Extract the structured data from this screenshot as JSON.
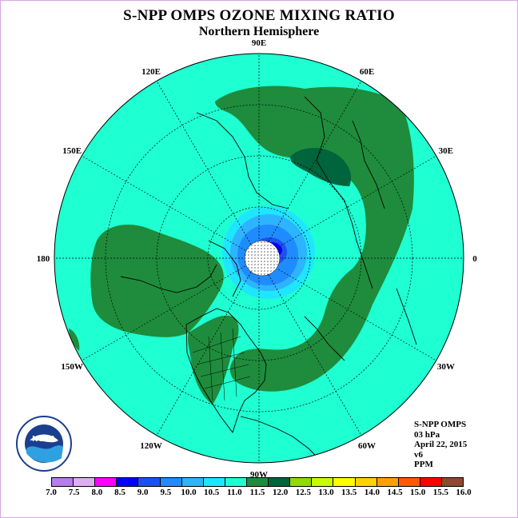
{
  "title": "S-NPP OMPS OZONE MIXING RATIO",
  "subtitle": "Northern Hemisphere",
  "longitude_labels": [
    {
      "text": "90E",
      "lon": 90
    },
    {
      "text": "60E",
      "lon": 60
    },
    {
      "text": "30E",
      "lon": 30
    },
    {
      "text": "0",
      "lon": 0
    },
    {
      "text": "30W",
      "lon": -30
    },
    {
      "text": "60W",
      "lon": -60
    },
    {
      "text": "90W",
      "lon": -90
    },
    {
      "text": "120W",
      "lon": -120
    },
    {
      "text": "150W",
      "lon": -150
    },
    {
      "text": "180",
      "lon": 180
    },
    {
      "text": "150E",
      "lon": 150
    },
    {
      "text": "120E",
      "lon": 120
    }
  ],
  "info": {
    "instrument": "S-NPP OMPS",
    "level": "03 hPa",
    "date": "April 22, 2015",
    "version": "v6",
    "units": "PPM"
  },
  "logo": {
    "text": "NOAA",
    "icon": "noaa-logo-icon"
  },
  "colorbar": {
    "labels": [
      "7.0",
      "7.5",
      "8.0",
      "8.5",
      "9.0",
      "9.5",
      "10.0",
      "10.5",
      "11.0",
      "11.5",
      "12.0",
      "12.5",
      "13.0",
      "13.5",
      "14.0",
      "14.5",
      "15.0",
      "15.5",
      "16.0"
    ],
    "colors": [
      "#b77de8",
      "#dcb0f0",
      "#ff00ff",
      "#0000ff",
      "#1e50f0",
      "#1e8cff",
      "#2db4ff",
      "#1ee6ff",
      "#1effd2",
      "#1e8c3c",
      "#00643c",
      "#90dc00",
      "#c8ff00",
      "#ffff00",
      "#ffd200",
      "#ffa000",
      "#ff5a00",
      "#ff0000",
      "#8b4a32"
    ]
  },
  "map_fields": [
    {
      "name": "background-field",
      "range": "11.0-11.5",
      "color": "#1effd2"
    },
    {
      "name": "dark-green-band",
      "range": "11.5-12.0",
      "color": "#1e8c3c"
    },
    {
      "name": "darkest-green-core",
      "range": "12.0-12.5",
      "color": "#00643c"
    },
    {
      "name": "polar-low-ring",
      "range": "9.0-11.0",
      "color": "#1e8cff"
    }
  ]
}
